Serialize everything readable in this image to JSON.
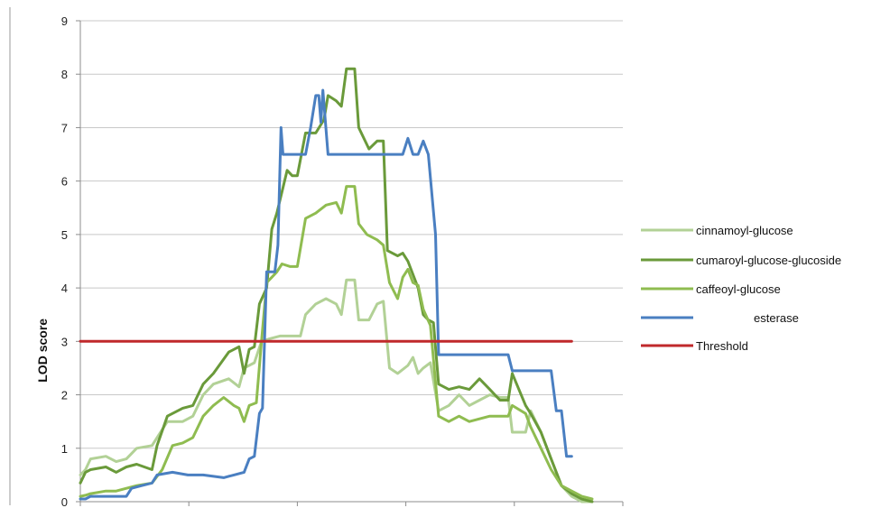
{
  "chart_data": {
    "type": "line",
    "title": "",
    "xlabel": "",
    "ylabel": "LOD score",
    "ylim": [
      0,
      9
    ],
    "yticks": [
      0,
      1,
      2,
      3,
      4,
      5,
      6,
      7,
      8,
      9
    ],
    "xlim": [
      0,
      5.3
    ],
    "x_tick_labels_shown": false,
    "grid": "horizontal",
    "legend": "right",
    "series": [
      {
        "name": "cinnamoyl-glucose",
        "color": "#b2d196",
        "points": [
          [
            0,
            0.5
          ],
          [
            0.05,
            0.6
          ],
          [
            0.1,
            0.8
          ],
          [
            0.25,
            0.85
          ],
          [
            0.35,
            0.75
          ],
          [
            0.45,
            0.8
          ],
          [
            0.55,
            1.0
          ],
          [
            0.7,
            1.05
          ],
          [
            0.85,
            1.5
          ],
          [
            1.0,
            1.5
          ],
          [
            1.1,
            1.6
          ],
          [
            1.2,
            2.0
          ],
          [
            1.3,
            2.2
          ],
          [
            1.45,
            2.3
          ],
          [
            1.55,
            2.15
          ],
          [
            1.6,
            2.5
          ],
          [
            1.7,
            2.6
          ],
          [
            1.77,
            3.0
          ],
          [
            1.85,
            3.05
          ],
          [
            1.95,
            3.1
          ],
          [
            2.05,
            3.1
          ],
          [
            2.15,
            3.1
          ],
          [
            2.2,
            3.5
          ],
          [
            2.3,
            3.7
          ],
          [
            2.4,
            3.8
          ],
          [
            2.5,
            3.7
          ],
          [
            2.55,
            3.5
          ],
          [
            2.6,
            4.15
          ],
          [
            2.68,
            4.15
          ],
          [
            2.72,
            3.4
          ],
          [
            2.82,
            3.4
          ],
          [
            2.9,
            3.7
          ],
          [
            2.96,
            3.75
          ],
          [
            3.02,
            2.5
          ],
          [
            3.1,
            2.4
          ],
          [
            3.2,
            2.55
          ],
          [
            3.25,
            2.7
          ],
          [
            3.3,
            2.4
          ],
          [
            3.35,
            2.5
          ],
          [
            3.42,
            2.6
          ],
          [
            3.5,
            1.7
          ],
          [
            3.6,
            1.8
          ],
          [
            3.7,
            2.0
          ],
          [
            3.8,
            1.8
          ],
          [
            3.9,
            1.9
          ],
          [
            4.0,
            2.0
          ],
          [
            4.1,
            1.95
          ],
          [
            4.18,
            1.95
          ],
          [
            4.22,
            1.3
          ],
          [
            4.35,
            1.3
          ],
          [
            4.4,
            1.7
          ],
          [
            4.5,
            1.3
          ],
          [
            4.6,
            0.8
          ],
          [
            4.7,
            0.3
          ],
          [
            4.8,
            0.1
          ],
          [
            4.9,
            0.0
          ],
          [
            5.0,
            0.0
          ]
        ]
      },
      {
        "name": "cumaroyl-glucose-glucoside",
        "color": "#6a9a3a",
        "points": [
          [
            0,
            0.35
          ],
          [
            0.05,
            0.55
          ],
          [
            0.1,
            0.6
          ],
          [
            0.25,
            0.65
          ],
          [
            0.35,
            0.55
          ],
          [
            0.45,
            0.65
          ],
          [
            0.55,
            0.7
          ],
          [
            0.7,
            0.6
          ],
          [
            0.75,
            1.05
          ],
          [
            0.85,
            1.6
          ],
          [
            1.0,
            1.75
          ],
          [
            1.1,
            1.8
          ],
          [
            1.2,
            2.2
          ],
          [
            1.3,
            2.4
          ],
          [
            1.45,
            2.8
          ],
          [
            1.55,
            2.9
          ],
          [
            1.6,
            2.4
          ],
          [
            1.65,
            2.85
          ],
          [
            1.7,
            2.9
          ],
          [
            1.75,
            3.7
          ],
          [
            1.82,
            4.0
          ],
          [
            1.87,
            5.1
          ],
          [
            1.92,
            5.4
          ],
          [
            1.97,
            5.8
          ],
          [
            2.02,
            6.2
          ],
          [
            2.07,
            6.1
          ],
          [
            2.12,
            6.1
          ],
          [
            2.2,
            6.9
          ],
          [
            2.3,
            6.9
          ],
          [
            2.38,
            7.15
          ],
          [
            2.42,
            7.6
          ],
          [
            2.5,
            7.5
          ],
          [
            2.55,
            7.4
          ],
          [
            2.6,
            8.1
          ],
          [
            2.68,
            8.1
          ],
          [
            2.72,
            7.0
          ],
          [
            2.82,
            6.6
          ],
          [
            2.9,
            6.75
          ],
          [
            2.96,
            6.75
          ],
          [
            3.0,
            4.7
          ],
          [
            3.1,
            4.6
          ],
          [
            3.15,
            4.65
          ],
          [
            3.2,
            4.5
          ],
          [
            3.3,
            4.0
          ],
          [
            3.35,
            3.5
          ],
          [
            3.4,
            3.4
          ],
          [
            3.45,
            3.35
          ],
          [
            3.5,
            2.2
          ],
          [
            3.6,
            2.1
          ],
          [
            3.7,
            2.15
          ],
          [
            3.8,
            2.1
          ],
          [
            3.9,
            2.3
          ],
          [
            4.0,
            2.1
          ],
          [
            4.1,
            1.9
          ],
          [
            4.18,
            1.9
          ],
          [
            4.22,
            2.4
          ],
          [
            4.35,
            1.8
          ],
          [
            4.4,
            1.65
          ],
          [
            4.5,
            1.3
          ],
          [
            4.6,
            0.8
          ],
          [
            4.7,
            0.3
          ],
          [
            4.8,
            0.15
          ],
          [
            4.9,
            0.05
          ],
          [
            5.0,
            0.0
          ]
        ]
      },
      {
        "name": "caffeoyl-glucose",
        "color": "#8fbc50",
        "points": [
          [
            0,
            0.1
          ],
          [
            0.05,
            0.12
          ],
          [
            0.1,
            0.15
          ],
          [
            0.25,
            0.2
          ],
          [
            0.35,
            0.2
          ],
          [
            0.45,
            0.25
          ],
          [
            0.55,
            0.3
          ],
          [
            0.7,
            0.35
          ],
          [
            0.8,
            0.6
          ],
          [
            0.9,
            1.05
          ],
          [
            1.0,
            1.1
          ],
          [
            1.1,
            1.2
          ],
          [
            1.2,
            1.6
          ],
          [
            1.3,
            1.8
          ],
          [
            1.4,
            1.95
          ],
          [
            1.5,
            1.8
          ],
          [
            1.55,
            1.75
          ],
          [
            1.6,
            1.5
          ],
          [
            1.65,
            1.8
          ],
          [
            1.72,
            1.85
          ],
          [
            1.77,
            3.0
          ],
          [
            1.82,
            4.1
          ],
          [
            1.87,
            4.2
          ],
          [
            1.92,
            4.3
          ],
          [
            1.97,
            4.45
          ],
          [
            2.05,
            4.4
          ],
          [
            2.12,
            4.4
          ],
          [
            2.2,
            5.3
          ],
          [
            2.3,
            5.4
          ],
          [
            2.4,
            5.55
          ],
          [
            2.5,
            5.6
          ],
          [
            2.55,
            5.4
          ],
          [
            2.6,
            5.9
          ],
          [
            2.68,
            5.9
          ],
          [
            2.72,
            5.2
          ],
          [
            2.8,
            5.0
          ],
          [
            2.9,
            4.9
          ],
          [
            2.96,
            4.8
          ],
          [
            3.02,
            4.1
          ],
          [
            3.1,
            3.8
          ],
          [
            3.15,
            4.2
          ],
          [
            3.2,
            4.35
          ],
          [
            3.25,
            4.1
          ],
          [
            3.3,
            4.05
          ],
          [
            3.35,
            3.6
          ],
          [
            3.42,
            3.3
          ],
          [
            3.5,
            1.6
          ],
          [
            3.6,
            1.5
          ],
          [
            3.7,
            1.6
          ],
          [
            3.8,
            1.5
          ],
          [
            3.9,
            1.55
          ],
          [
            4.0,
            1.6
          ],
          [
            4.1,
            1.6
          ],
          [
            4.18,
            1.6
          ],
          [
            4.22,
            1.8
          ],
          [
            4.35,
            1.65
          ],
          [
            4.4,
            1.4
          ],
          [
            4.5,
            1.0
          ],
          [
            4.6,
            0.6
          ],
          [
            4.7,
            0.3
          ],
          [
            4.8,
            0.2
          ],
          [
            4.9,
            0.1
          ],
          [
            5.0,
            0.05
          ]
        ]
      },
      {
        "name": "esterase",
        "color": "#4a7fc1",
        "points": [
          [
            0,
            0.05
          ],
          [
            0.05,
            0.05
          ],
          [
            0.1,
            0.1
          ],
          [
            0.3,
            0.1
          ],
          [
            0.45,
            0.1
          ],
          [
            0.5,
            0.25
          ],
          [
            0.6,
            0.3
          ],
          [
            0.7,
            0.35
          ],
          [
            0.75,
            0.5
          ],
          [
            0.9,
            0.55
          ],
          [
            1.05,
            0.5
          ],
          [
            1.2,
            0.5
          ],
          [
            1.4,
            0.45
          ],
          [
            1.5,
            0.5
          ],
          [
            1.6,
            0.55
          ],
          [
            1.65,
            0.8
          ],
          [
            1.7,
            0.85
          ],
          [
            1.75,
            1.65
          ],
          [
            1.78,
            1.75
          ],
          [
            1.82,
            4.3
          ],
          [
            1.9,
            4.3
          ],
          [
            1.93,
            4.8
          ],
          [
            1.96,
            7.0
          ],
          [
            1.98,
            6.5
          ],
          [
            2.1,
            6.5
          ],
          [
            2.2,
            6.5
          ],
          [
            2.25,
            7.0
          ],
          [
            2.3,
            7.6
          ],
          [
            2.33,
            7.6
          ],
          [
            2.35,
            7.1
          ],
          [
            2.37,
            7.7
          ],
          [
            2.42,
            6.5
          ],
          [
            2.6,
            6.5
          ],
          [
            2.8,
            6.5
          ],
          [
            2.96,
            6.5
          ],
          [
            3.1,
            6.5
          ],
          [
            3.15,
            6.5
          ],
          [
            3.2,
            6.8
          ],
          [
            3.25,
            6.5
          ],
          [
            3.3,
            6.5
          ],
          [
            3.35,
            6.75
          ],
          [
            3.4,
            6.5
          ],
          [
            3.47,
            5.0
          ],
          [
            3.5,
            2.75
          ],
          [
            3.7,
            2.75
          ],
          [
            3.9,
            2.75
          ],
          [
            4.05,
            2.75
          ],
          [
            4.1,
            2.75
          ],
          [
            4.18,
            2.75
          ],
          [
            4.22,
            2.45
          ],
          [
            4.4,
            2.45
          ],
          [
            4.55,
            2.45
          ],
          [
            4.6,
            2.45
          ],
          [
            4.65,
            1.7
          ],
          [
            4.7,
            1.7
          ],
          [
            4.75,
            0.85
          ],
          [
            4.8,
            0.85
          ]
        ]
      },
      {
        "name": "Threshold",
        "color": "#c0292b",
        "points": [
          [
            0,
            3.0
          ],
          [
            4.8,
            3.0
          ]
        ]
      }
    ]
  }
}
